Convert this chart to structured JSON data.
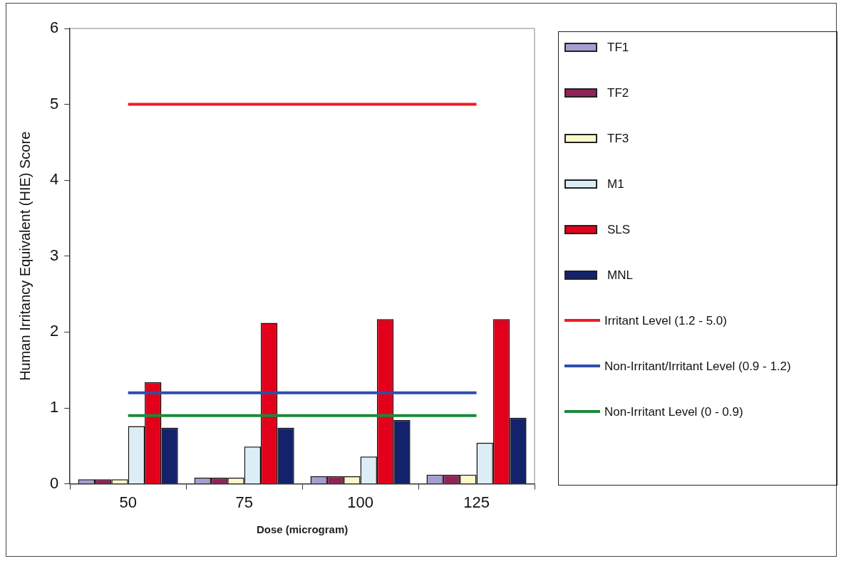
{
  "chart_data": {
    "type": "bar",
    "xlabel": "Dose (microgram)",
    "ylabel": "Human Irritancy Equivalent (HIE) Score",
    "categories": [
      "50",
      "75",
      "100",
      "125"
    ],
    "series": [
      {
        "name": "TF1",
        "color": "#a49fd0",
        "values": [
          0.06,
          0.08,
          0.1,
          0.12
        ]
      },
      {
        "name": "TF2",
        "color": "#8f2457",
        "values": [
          0.06,
          0.08,
          0.1,
          0.12
        ]
      },
      {
        "name": "TF3",
        "color": "#fff8c8",
        "values": [
          0.06,
          0.08,
          0.1,
          0.12
        ]
      },
      {
        "name": "M1",
        "color": "#dcedf5",
        "values": [
          0.76,
          0.49,
          0.36,
          0.54
        ]
      },
      {
        "name": "SLS",
        "color": "#e2001a",
        "values": [
          1.34,
          2.12,
          2.17,
          2.17
        ]
      },
      {
        "name": "MNL",
        "color": "#13226b",
        "values": [
          0.74,
          0.74,
          0.84,
          0.87
        ]
      },
      {
        "name": "Irritant Level (1.2 - 5.0)",
        "type": "line",
        "color": "#ee1c25",
        "values": [
          5,
          5,
          5,
          5
        ]
      },
      {
        "name": "Non-Irritant/Irritant Level (0.9 - 1.2)",
        "type": "line",
        "color": "#2e4fa8",
        "values": [
          1.2,
          1.2,
          1.2,
          1.2
        ]
      },
      {
        "name": "Non-Irritant Level (0 - 0.9)",
        "type": "line",
        "color": "#1a8a3a",
        "values": [
          0.9,
          0.9,
          0.9,
          0.9
        ]
      }
    ],
    "ylim": [
      0,
      6
    ],
    "yticks": [
      0,
      1,
      2,
      3,
      4,
      5,
      6
    ],
    "grid": false,
    "legend": "right",
    "marker": "none",
    "line_style": "solid"
  }
}
